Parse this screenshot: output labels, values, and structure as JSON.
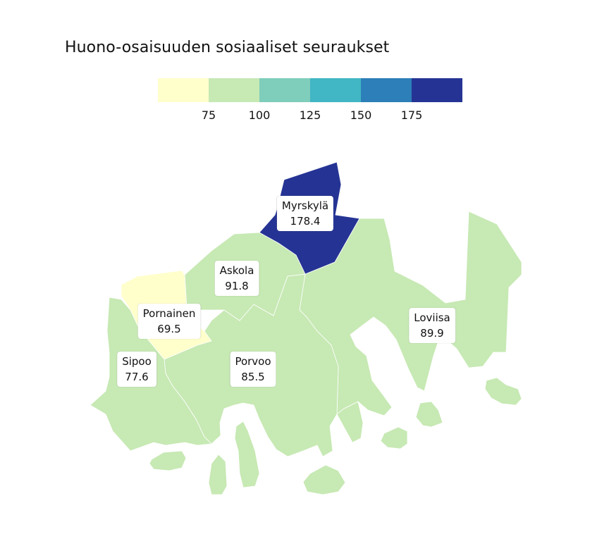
{
  "title": "Huono-osaisuuden sosiaaliset seuraukset",
  "legend": {
    "colors": [
      "#ffffcc",
      "#c7e9b4",
      "#7fcdbb",
      "#41b6c4",
      "#2c7fb8",
      "#253494"
    ],
    "ticks": [
      "75",
      "100",
      "125",
      "150",
      "175"
    ]
  },
  "regions": [
    {
      "name": "Myrskylä",
      "value": "178.4",
      "color": "#253494"
    },
    {
      "name": "Askola",
      "value": "91.8",
      "color": "#c7e9b4"
    },
    {
      "name": "Pornainen",
      "value": "69.5",
      "color": "#ffffcc"
    },
    {
      "name": "Loviisa",
      "value": "89.9",
      "color": "#c7e9b4"
    },
    {
      "name": "Sipoo",
      "value": "77.6",
      "color": "#c7e9b4"
    },
    {
      "name": "Porvoo",
      "value": "85.5",
      "color": "#c7e9b4"
    }
  ]
}
